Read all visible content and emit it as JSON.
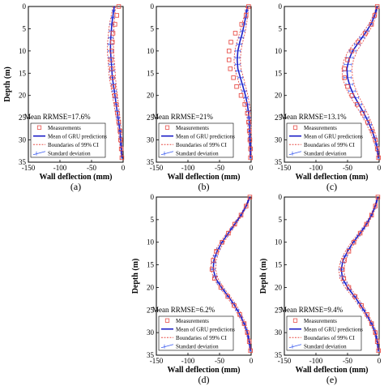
{
  "figure": {
    "ylabel": "Depth (m)",
    "xlabel": "Wall deflection (mm)",
    "legend": [
      "Measurements",
      "Mean of GRU predictions",
      "Boundaries of 99% CI",
      "Standard deviation"
    ],
    "colors": {
      "measurement": "#e8514b",
      "mean": "#1f22c8",
      "ci": "#e8514b",
      "std": "#3c5cf0"
    }
  },
  "chart_data": [
    {
      "type": "line",
      "panel": "(a)",
      "annotation": "Mean RRMSE=17.6%",
      "xlabel": "Wall deflection (mm)",
      "ylabel": "Depth (m)",
      "xlim": [
        -150,
        0
      ],
      "ylim": [
        0,
        35
      ],
      "xticks": [
        "-150",
        "-100",
        "-50",
        "0"
      ],
      "yticks": [
        "0",
        "5",
        "10",
        "15",
        "20",
        "25",
        "30",
        "35"
      ],
      "measurements": {
        "depth": [
          0,
          2,
          4,
          6,
          8,
          10,
          12,
          14,
          16,
          18,
          20,
          22,
          24,
          26,
          28,
          30,
          32,
          34
        ],
        "deflection": [
          -7,
          -10,
          -13,
          -16,
          -17,
          -18,
          -19,
          -18,
          -17,
          -15,
          -13,
          -11,
          -9,
          -7,
          -5,
          -4,
          -3,
          -2
        ]
      },
      "mean": {
        "depth": [
          0,
          2,
          4,
          6,
          8,
          10,
          12,
          14,
          16,
          18,
          20,
          22,
          24,
          26,
          28,
          30,
          32,
          34
        ],
        "deflection": [
          -14,
          -16,
          -18,
          -19,
          -20,
          -20,
          -19,
          -18,
          -17,
          -15,
          -13,
          -11,
          -9,
          -7,
          -5,
          -4,
          -3,
          -2
        ]
      },
      "ci_halfwidth": {
        "depth": [
          0,
          5,
          10,
          15,
          20,
          25,
          30,
          34
        ],
        "value": [
          2,
          4,
          5,
          5,
          4,
          3,
          2,
          1
        ]
      }
    },
    {
      "type": "line",
      "panel": "(b)",
      "annotation": "Mean RRMSE=21%",
      "xlabel": "Wall deflection (mm)",
      "ylabel": "",
      "xlim": [
        -150,
        0
      ],
      "ylim": [
        0,
        35
      ],
      "xticks": [
        "-150",
        "-100",
        "-50",
        "0"
      ],
      "yticks": [
        "0",
        "5",
        "10",
        "15",
        "20",
        "25",
        "30",
        "35"
      ],
      "measurements": {
        "depth": [
          0,
          2,
          4,
          6,
          8,
          10,
          12,
          14,
          16,
          18,
          20,
          22,
          24,
          26,
          28,
          30,
          32,
          34
        ],
        "deflection": [
          -4,
          -8,
          -15,
          -25,
          -32,
          -35,
          -35,
          -33,
          -28,
          -23,
          -16,
          -10,
          -6,
          -4,
          -3,
          -2,
          -1,
          -1
        ]
      },
      "mean": {
        "depth": [
          0,
          2,
          4,
          6,
          8,
          10,
          12,
          14,
          16,
          18,
          20,
          22,
          24,
          26,
          28,
          30,
          32,
          34
        ],
        "deflection": [
          -6,
          -8,
          -11,
          -14,
          -18,
          -21,
          -22,
          -21,
          -17,
          -13,
          -9,
          -6,
          -4,
          -3,
          -2,
          -2,
          -1,
          -1
        ]
      },
      "ci_halfwidth": {
        "depth": [
          0,
          5,
          10,
          15,
          20,
          25,
          30,
          34
        ],
        "value": [
          2,
          4,
          5,
          5,
          4,
          3,
          2,
          1
        ]
      }
    },
    {
      "type": "line",
      "panel": "(c)",
      "annotation": "Mean RRMSE=13.1%",
      "xlabel": "Wall deflection (mm)",
      "ylabel": "",
      "xlim": [
        -150,
        0
      ],
      "ylim": [
        0,
        35
      ],
      "xticks": [
        "-150",
        "-100",
        "-50",
        "0"
      ],
      "yticks": [
        "0",
        "5",
        "10",
        "15",
        "20",
        "25",
        "30",
        "35"
      ],
      "measurements": {
        "depth": [
          0,
          2,
          4,
          6,
          8,
          10,
          12,
          14,
          16,
          18,
          20,
          22,
          24,
          26,
          28,
          30,
          32,
          34
        ],
        "deflection": [
          -3,
          -7,
          -12,
          -22,
          -33,
          -43,
          -50,
          -55,
          -55,
          -50,
          -43,
          -35,
          -26,
          -18,
          -11,
          -6,
          -3,
          -1
        ]
      },
      "mean": {
        "depth": [
          0,
          2,
          4,
          6,
          8,
          10,
          12,
          14,
          16,
          18,
          20,
          22,
          24,
          26,
          28,
          30,
          32,
          34
        ],
        "deflection": [
          -3,
          -7,
          -13,
          -22,
          -32,
          -42,
          -48,
          -51,
          -50,
          -46,
          -40,
          -32,
          -24,
          -17,
          -11,
          -6,
          -3,
          -1
        ]
      },
      "ci_halfwidth": {
        "depth": [
          0,
          5,
          10,
          15,
          20,
          25,
          30,
          34
        ],
        "value": [
          1,
          4,
          7,
          8,
          7,
          5,
          3,
          1
        ]
      }
    },
    {
      "type": "line",
      "panel": "(d)",
      "annotation": "Mean RRMSE=6.2%",
      "xlabel": "Wall deflection (mm)",
      "ylabel": "Depth (m)",
      "xlim": [
        -150,
        0
      ],
      "ylim": [
        0,
        35
      ],
      "xticks": [
        "-150",
        "-100",
        "-50",
        "0"
      ],
      "yticks": [
        "0",
        "5",
        "10",
        "15",
        "20",
        "25",
        "30",
        "35"
      ],
      "measurements": {
        "depth": [
          0,
          2,
          4,
          6,
          8,
          10,
          12,
          14,
          16,
          18,
          20,
          22,
          24,
          26,
          28,
          30,
          32,
          34
        ],
        "deflection": [
          -2,
          -8,
          -16,
          -26,
          -36,
          -46,
          -55,
          -60,
          -62,
          -58,
          -48,
          -37,
          -27,
          -18,
          -11,
          -6,
          -3,
          -1
        ]
      },
      "mean": {
        "depth": [
          0,
          2,
          4,
          6,
          8,
          10,
          12,
          14,
          16,
          18,
          20,
          22,
          24,
          26,
          28,
          30,
          32,
          34
        ],
        "deflection": [
          -2,
          -8,
          -16,
          -26,
          -36,
          -46,
          -54,
          -59,
          -60,
          -56,
          -47,
          -36,
          -26,
          -18,
          -11,
          -6,
          -3,
          -1
        ]
      },
      "ci_halfwidth": {
        "depth": [
          0,
          5,
          10,
          15,
          20,
          25,
          30,
          34
        ],
        "value": [
          1,
          2,
          3,
          4,
          3,
          3,
          2,
          1
        ]
      }
    },
    {
      "type": "line",
      "panel": "(e)",
      "annotation": "Mean RRMSE=9.4%",
      "xlabel": "Wall deflection (mm)",
      "ylabel": "Depth (m)",
      "xlim": [
        -150,
        0
      ],
      "ylim": [
        0,
        35
      ],
      "xticks": [
        "-150",
        "-100",
        "-50",
        "0"
      ],
      "yticks": [
        "0",
        "5",
        "10",
        "15",
        "20",
        "25",
        "30",
        "35"
      ],
      "measurements": {
        "depth": [
          0,
          2,
          4,
          6,
          8,
          10,
          12,
          14,
          16,
          18,
          20,
          22,
          24,
          26,
          28,
          30,
          32,
          34
        ],
        "deflection": [
          -2,
          -6,
          -12,
          -20,
          -30,
          -40,
          -48,
          -55,
          -58,
          -56,
          -48,
          -38,
          -28,
          -19,
          -12,
          -6,
          -3,
          -1
        ]
      },
      "mean": {
        "depth": [
          0,
          2,
          4,
          6,
          8,
          10,
          12,
          14,
          16,
          18,
          20,
          22,
          24,
          26,
          28,
          30,
          32,
          34
        ],
        "deflection": [
          -2,
          -6,
          -12,
          -20,
          -30,
          -41,
          -50,
          -57,
          -60,
          -58,
          -50,
          -39,
          -29,
          -20,
          -12,
          -6,
          -3,
          -1
        ]
      },
      "ci_halfwidth": {
        "depth": [
          0,
          5,
          10,
          15,
          20,
          25,
          30,
          34
        ],
        "value": [
          1,
          2,
          3,
          4,
          4,
          3,
          2,
          1
        ]
      }
    }
  ]
}
